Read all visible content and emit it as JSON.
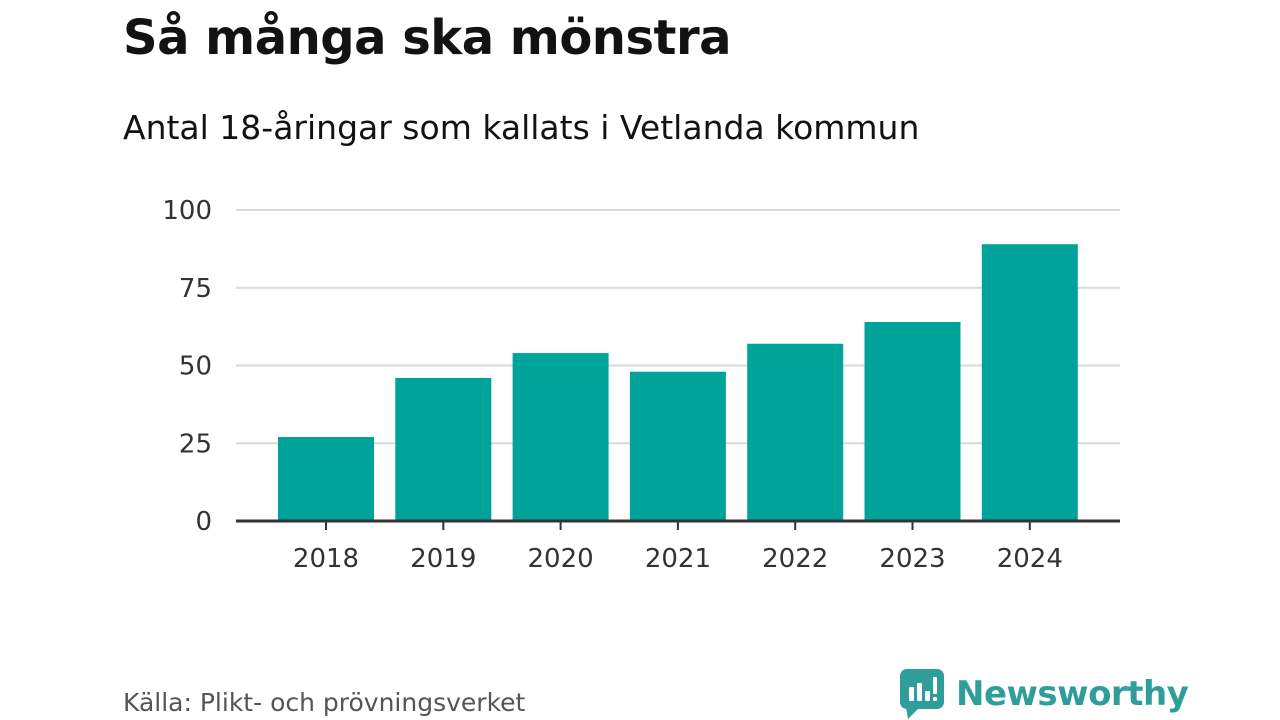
{
  "title": "Så många ska mönstra",
  "subtitle": "Antal 18-åringar som kallats i Vetlanda kommun",
  "source": "Källa: Plikt- och prövningsverket",
  "brand": {
    "name": "Newsworthy",
    "icon": "newsworthy-logo-icon",
    "color": "#2f9e9a"
  },
  "colors": {
    "bar": "#00a39a",
    "grid": "#d9d9d9",
    "axis": "#333333"
  },
  "chart_data": {
    "type": "bar",
    "categories": [
      "2018",
      "2019",
      "2020",
      "2021",
      "2022",
      "2023",
      "2024"
    ],
    "values": [
      27,
      46,
      54,
      48,
      57,
      64,
      89
    ],
    "title": "Så många ska mönstra",
    "subtitle": "Antal 18-åringar som kallats i Vetlanda kommun",
    "xlabel": "",
    "ylabel": "",
    "ylim": [
      0,
      100
    ],
    "yticks": [
      0,
      25,
      50,
      75,
      100
    ],
    "grid": true,
    "legend": "none"
  }
}
